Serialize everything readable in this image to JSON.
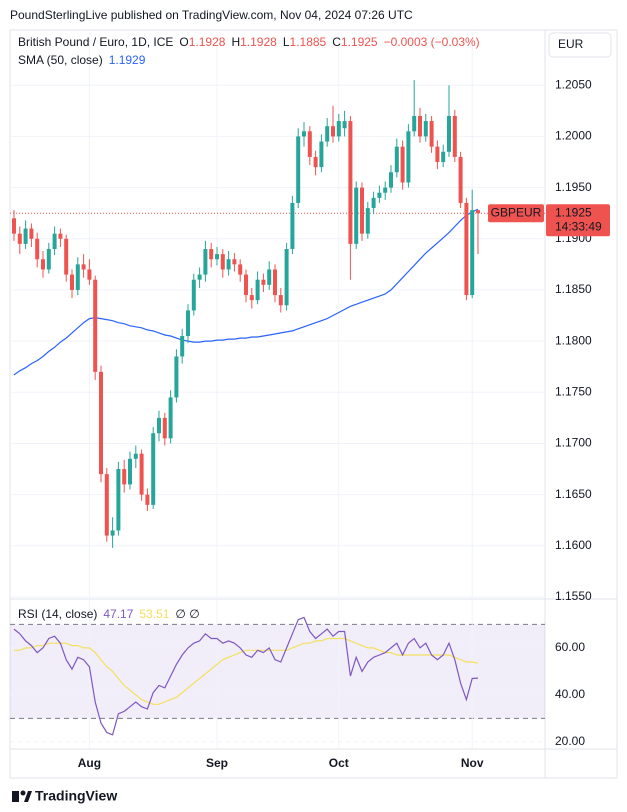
{
  "header": {
    "text": "PoundSterlingLive published on TradingView.com, Nov 04, 2024 07:26 UTC"
  },
  "legend": {
    "o": "O",
    "h": "H",
    "l": "L",
    "c": "C",
    "change": "−0.0003 (−0.03%)",
    "currency": "EUR",
    "symbol_tag": "GBPEUR",
    "countdown": "14:33:49",
    "rsi_extra": "∅ ∅"
  },
  "footer": {
    "brand": "TradingView"
  },
  "chart_data": {
    "type": "candlestick",
    "title": "British Pound / Euro, 1D, ICE",
    "up_color": "#26a69a",
    "down_color": "#ef5350",
    "categories": [
      null,
      null,
      null,
      null,
      null,
      null,
      null,
      null,
      null,
      null,
      null,
      null,
      null,
      "Aug",
      null,
      null,
      null,
      null,
      null,
      null,
      null,
      null,
      null,
      null,
      null,
      null,
      null,
      null,
      null,
      null,
      null,
      null,
      null,
      null,
      null,
      "Sep",
      null,
      null,
      null,
      null,
      null,
      null,
      null,
      null,
      null,
      null,
      null,
      null,
      null,
      null,
      null,
      null,
      null,
      null,
      null,
      null,
      "Oct",
      null,
      null,
      null,
      null,
      null,
      null,
      null,
      null,
      null,
      null,
      null,
      null,
      null,
      null,
      null,
      null,
      null,
      null,
      null,
      null,
      null,
      null,
      "Nov",
      null
    ],
    "open": [
      1.192,
      1.1905,
      1.1895,
      1.191,
      1.19,
      1.188,
      1.187,
      1.189,
      1.1905,
      1.19,
      1.1865,
      1.185,
      1.1875,
      1.187,
      1.186,
      1.177,
      1.167,
      1.161,
      1.1615,
      1.1675,
      1.166,
      1.1685,
      1.169,
      1.165,
      1.164,
      1.171,
      1.1725,
      1.1705,
      1.1745,
      1.1785,
      1.1805,
      1.183,
      1.186,
      1.1865,
      1.189,
      1.188,
      1.1885,
      1.187,
      1.188,
      1.1875,
      1.1865,
      1.1845,
      1.184,
      1.186,
      1.1855,
      1.187,
      1.1845,
      1.1835,
      1.189,
      1.1935,
      1.2,
      1.2005,
      1.198,
      1.197,
      1.1995,
      1.201,
      1.2,
      1.2008,
      1.2015,
      1.1895,
      1.195,
      1.1905,
      1.193,
      1.194,
      1.1945,
      1.195,
      1.1965,
      1.199,
      1.1955,
      1.2005,
      1.202,
      1.2,
      1.2015,
      1.199,
      1.1975,
      1.1985,
      1.202,
      1.198,
      1.1935,
      1.1845,
      1.1928
    ],
    "high": [
      1.1928,
      1.1912,
      1.1918,
      1.1915,
      1.1906,
      1.1888,
      1.1896,
      1.1912,
      1.191,
      1.1904,
      1.187,
      1.1882,
      1.1885,
      1.188,
      1.1864,
      1.1776,
      1.1676,
      1.1628,
      1.1682,
      1.1684,
      1.1692,
      1.1698,
      1.1694,
      1.1656,
      1.1716,
      1.1732,
      1.173,
      1.1752,
      1.1792,
      1.1812,
      1.1836,
      1.1866,
      1.1872,
      1.1898,
      1.1896,
      1.1892,
      1.189,
      1.1888,
      1.1886,
      1.188,
      1.187,
      1.1852,
      1.1868,
      1.1866,
      1.1878,
      1.1875,
      1.1852,
      1.1896,
      1.1942,
      1.2008,
      1.2014,
      1.201,
      1.1986,
      1.2002,
      1.2018,
      1.203,
      1.2022,
      1.2025,
      1.202,
      1.1956,
      1.1955,
      1.1936,
      1.1946,
      1.1952,
      1.1956,
      1.1972,
      1.1998,
      1.1996,
      1.2012,
      1.2055,
      1.2028,
      1.2022,
      1.202,
      1.1996,
      1.1992,
      1.205,
      1.2026,
      1.1985,
      1.194,
      1.1948,
      1.1928
    ],
    "low": [
      1.1898,
      1.1885,
      1.189,
      1.1892,
      1.1872,
      1.1862,
      1.1866,
      1.1884,
      1.1892,
      1.1858,
      1.1842,
      1.1845,
      1.1862,
      1.1855,
      1.1762,
      1.1662,
      1.1604,
      1.1598,
      1.161,
      1.1652,
      1.1655,
      1.1676,
      1.1644,
      1.1634,
      1.1636,
      1.1702,
      1.1698,
      1.17,
      1.174,
      1.1778,
      1.1798,
      1.1825,
      1.1852,
      1.1858,
      1.1872,
      1.1874,
      1.1862,
      1.1864,
      1.1868,
      1.1858,
      1.1838,
      1.1832,
      1.1836,
      1.1848,
      1.185,
      1.1838,
      1.1828,
      1.183,
      1.1885,
      1.193,
      1.199,
      1.1972,
      1.1962,
      1.1965,
      1.199,
      1.1994,
      1.1995,
      1.2,
      1.186,
      1.189,
      1.1898,
      1.19,
      1.1924,
      1.1935,
      1.1938,
      1.1945,
      1.196,
      1.1948,
      1.195,
      1.2,
      1.1994,
      1.1995,
      1.1984,
      1.1968,
      1.197,
      1.198,
      1.1975,
      1.193,
      1.184,
      1.1842,
      1.1885
    ],
    "close": [
      1.1905,
      1.1895,
      1.191,
      1.19,
      1.188,
      1.187,
      1.189,
      1.1905,
      1.19,
      1.1865,
      1.185,
      1.1875,
      1.187,
      1.186,
      1.177,
      1.167,
      1.161,
      1.1615,
      1.1675,
      1.166,
      1.1685,
      1.169,
      1.165,
      1.164,
      1.171,
      1.1725,
      1.1705,
      1.1745,
      1.1785,
      1.1805,
      1.183,
      1.186,
      1.1865,
      1.189,
      1.188,
      1.1885,
      1.187,
      1.188,
      1.1875,
      1.1865,
      1.1845,
      1.184,
      1.186,
      1.1855,
      1.187,
      1.1845,
      1.1835,
      1.189,
      1.1935,
      1.2,
      1.2005,
      1.198,
      1.197,
      1.1995,
      1.201,
      1.2,
      1.2015,
      1.2015,
      1.1895,
      1.195,
      1.1905,
      1.193,
      1.194,
      1.1945,
      1.195,
      1.1965,
      1.199,
      1.1955,
      1.2005,
      1.202,
      1.2,
      1.2015,
      1.199,
      1.1975,
      1.1985,
      1.202,
      1.198,
      1.1935,
      1.1845,
      1.1928,
      1.1925
    ],
    "ylim": [
      1.1549,
      1.2104
    ],
    "yticks": [
      {
        "value": 1.155,
        "label": "1.1550"
      },
      {
        "value": 1.16,
        "label": "1.1600"
      },
      {
        "value": 1.165,
        "label": "1.1650"
      },
      {
        "value": 1.17,
        "label": "1.1700"
      },
      {
        "value": 1.175,
        "label": "1.1750"
      },
      {
        "value": 1.18,
        "label": "1.1800"
      },
      {
        "value": 1.185,
        "label": "1.1850"
      },
      {
        "value": 1.19,
        "label": "1.1900"
      },
      {
        "value": 1.195,
        "label": "1.1950"
      },
      {
        "value": 1.2,
        "label": "1.2000"
      },
      {
        "value": 1.205,
        "label": "1.2050"
      }
    ],
    "grid": true,
    "sma": {
      "name": "SMA (50, close)",
      "color": "#2962ff",
      "values": [
        1.1767,
        1.1771,
        1.1774,
        1.1778,
        1.1781,
        1.1785,
        1.179,
        1.1794,
        1.1799,
        1.1803,
        1.1808,
        1.1813,
        1.1818,
        1.1822,
        1.1823,
        1.1822,
        1.1821,
        1.182,
        1.1818,
        1.1817,
        1.1815,
        1.1814,
        1.1813,
        1.1811,
        1.181,
        1.1808,
        1.1806,
        1.1805,
        1.1803,
        1.1801,
        1.18,
        1.1799,
        1.1799,
        1.18,
        1.18,
        1.1801,
        1.1801,
        1.1802,
        1.1802,
        1.1803,
        1.1803,
        1.1804,
        1.1804,
        1.1805,
        1.1806,
        1.1807,
        1.1808,
        1.1809,
        1.181,
        1.1812,
        1.1814,
        1.1816,
        1.1818,
        1.182,
        1.1822,
        1.1825,
        1.1828,
        1.1831,
        1.1834,
        1.1836,
        1.1838,
        1.184,
        1.1842,
        1.1844,
        1.1846,
        1.185,
        1.1856,
        1.1862,
        1.1868,
        1.1874,
        1.188,
        1.1886,
        1.1891,
        1.1896,
        1.1901,
        1.1906,
        1.1912,
        1.1918,
        1.1923,
        1.1926,
        1.1929
      ]
    },
    "rsi": {
      "name": "RSI (14, close)",
      "color": "#7e57c2",
      "ma_color": "#f5df5e",
      "values": [
        68,
        66,
        63,
        61,
        58,
        60,
        64,
        65,
        62,
        55,
        51,
        56,
        55,
        52,
        37,
        28,
        24,
        23,
        32,
        33,
        35,
        37,
        35,
        34,
        41,
        44,
        43,
        48,
        53,
        57,
        60,
        62,
        63,
        66,
        64,
        64,
        62,
        63,
        62,
        60,
        57,
        56,
        59,
        58,
        60,
        55,
        54,
        60,
        66,
        72,
        73,
        67,
        64,
        66,
        68,
        65,
        67,
        67,
        48,
        56,
        50,
        54,
        56,
        57,
        58,
        60,
        62,
        57,
        62,
        64,
        60,
        62,
        57,
        55,
        57,
        62,
        55,
        45,
        38,
        47,
        47.17
      ],
      "ma_values": [
        59,
        59,
        60,
        60,
        61,
        61,
        62,
        62,
        62,
        62,
        61,
        61,
        60,
        60,
        58,
        55,
        52,
        50,
        47,
        44,
        42,
        40,
        38,
        37,
        36,
        36,
        37,
        38,
        39,
        41,
        43,
        45,
        47,
        49,
        51,
        53,
        55,
        56,
        57,
        58,
        59,
        59,
        59,
        59,
        59,
        59,
        59,
        59,
        60,
        61,
        62,
        62,
        63,
        63,
        64,
        64,
        64,
        64,
        63,
        62,
        61,
        60,
        60,
        59,
        58,
        58,
        57,
        57,
        57,
        57,
        57,
        57,
        57,
        57,
        57,
        57,
        56,
        55,
        54,
        54,
        53.51
      ],
      "ylim": [
        17.4,
        80.4
      ],
      "yticks": [
        {
          "value": 20,
          "label": "20.00"
        },
        {
          "value": 40,
          "label": "40.00"
        },
        {
          "value": 60,
          "label": "60.00"
        }
      ],
      "bands": [
        30,
        70
      ]
    }
  }
}
